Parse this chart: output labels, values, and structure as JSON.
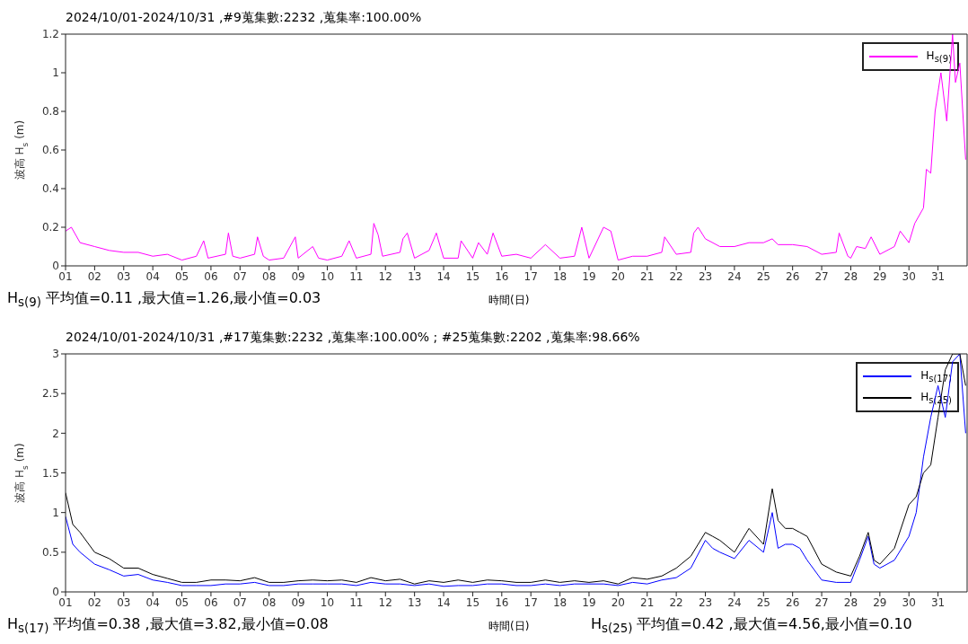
{
  "chart_data": [
    {
      "type": "line",
      "title": "2024/10/01-2024/10/31 ,#9蒐集數:2232 ,蒐集率:100.00%",
      "xlabel": "時間(日)",
      "ylabel": "波高 H$_{s}$ (m)",
      "annotations": [
        "H$_{s(9)}$ 平均值=0.11 ,最大值=1.26,最小值=0.03"
      ],
      "xlim": [
        1,
        32
      ],
      "ylim": [
        0,
        1.2
      ],
      "yticks": [
        0,
        0.2,
        0.4,
        0.6,
        0.8,
        1,
        1.2
      ],
      "xticks": [
        {
          "value": 1,
          "label": "01"
        },
        {
          "value": 2,
          "label": "02"
        },
        {
          "value": 3,
          "label": "03"
        },
        {
          "value": 4,
          "label": "04"
        },
        {
          "value": 5,
          "label": "05"
        },
        {
          "value": 6,
          "label": "06"
        },
        {
          "value": 7,
          "label": "07"
        },
        {
          "value": 8,
          "label": "08"
        },
        {
          "value": 9,
          "label": "09"
        },
        {
          "value": 10,
          "label": "10"
        },
        {
          "value": 11,
          "label": "11"
        },
        {
          "value": 12,
          "label": "12"
        },
        {
          "value": 13,
          "label": "13"
        },
        {
          "value": 14,
          "label": "14"
        },
        {
          "value": 15,
          "label": "15"
        },
        {
          "value": 16,
          "label": "16"
        },
        {
          "value": 17,
          "label": "17"
        },
        {
          "value": 18,
          "label": "18"
        },
        {
          "value": 19,
          "label": "19"
        },
        {
          "value": 20,
          "label": "20"
        },
        {
          "value": 21,
          "label": "21"
        },
        {
          "value": 22,
          "label": "22"
        },
        {
          "value": 23,
          "label": "23"
        },
        {
          "value": 24,
          "label": "24"
        },
        {
          "value": 25,
          "label": "25"
        },
        {
          "value": 26,
          "label": "26"
        },
        {
          "value": 27,
          "label": "27"
        },
        {
          "value": 28,
          "label": "28"
        },
        {
          "value": 29,
          "label": "29"
        },
        {
          "value": 30,
          "label": "30"
        },
        {
          "value": 31,
          "label": "31"
        }
      ],
      "legend": "top right",
      "series": [
        {
          "name": "H$_{s(9)}$",
          "color": "#ff00ff",
          "x": [
            1,
            1.2,
            1.5,
            2,
            2.5,
            3,
            3.5,
            4,
            4.5,
            5,
            5.5,
            5.75,
            5.9,
            6.5,
            6.6,
            6.75,
            7,
            7.5,
            7.6,
            7.8,
            8,
            8.5,
            8.9,
            9,
            9.5,
            9.7,
            10,
            10.5,
            10.75,
            11,
            11.5,
            11.6,
            11.75,
            11.9,
            12.5,
            12.6,
            12.75,
            13,
            13.5,
            13.75,
            14,
            14.5,
            14.6,
            15,
            15.2,
            15.5,
            15.7,
            16,
            16.5,
            17,
            17.5,
            18,
            18.5,
            18.75,
            19,
            19.5,
            19.75,
            20,
            20.5,
            21,
            21.5,
            21.6,
            22,
            22.5,
            22.6,
            22.75,
            23,
            23.5,
            24,
            24.5,
            25,
            25.3,
            25.5,
            26,
            26.5,
            27,
            27.5,
            27.6,
            27.9,
            28,
            28.2,
            28.5,
            28.7,
            29,
            29.5,
            29.7,
            30,
            30.2,
            30.5,
            30.6,
            30.75,
            30.9,
            31,
            31.1,
            31.3,
            31.5,
            31.6,
            31.75,
            31.95
          ],
          "values": [
            0.18,
            0.2,
            0.12,
            0.1,
            0.08,
            0.07,
            0.07,
            0.05,
            0.06,
            0.03,
            0.05,
            0.13,
            0.04,
            0.06,
            0.17,
            0.05,
            0.04,
            0.06,
            0.15,
            0.05,
            0.03,
            0.04,
            0.15,
            0.04,
            0.1,
            0.04,
            0.03,
            0.05,
            0.13,
            0.04,
            0.06,
            0.22,
            0.16,
            0.05,
            0.07,
            0.14,
            0.17,
            0.04,
            0.08,
            0.17,
            0.04,
            0.04,
            0.13,
            0.04,
            0.12,
            0.06,
            0.17,
            0.05,
            0.06,
            0.04,
            0.11,
            0.04,
            0.05,
            0.2,
            0.04,
            0.2,
            0.18,
            0.03,
            0.05,
            0.05,
            0.07,
            0.15,
            0.06,
            0.07,
            0.17,
            0.2,
            0.14,
            0.1,
            0.1,
            0.12,
            0.12,
            0.14,
            0.11,
            0.11,
            0.1,
            0.06,
            0.07,
            0.17,
            0.05,
            0.04,
            0.1,
            0.09,
            0.15,
            0.06,
            0.1,
            0.18,
            0.12,
            0.22,
            0.3,
            0.5,
            0.48,
            0.8,
            0.9,
            1.0,
            0.75,
            1.2,
            0.95,
            1.05,
            0.55
          ]
        }
      ]
    },
    {
      "type": "line",
      "title": "2024/10/01-2024/10/31 ,#17蒐集數:2232 ,蒐集率:100.00% ; #25蒐集數:2202 ,蒐集率:98.66%",
      "xlabel": "時間(日)",
      "ylabel": "波高 H$_{s}$ (m)",
      "annotations": [
        "H$_{s(17)}$ 平均值=0.38 ,最大值=3.82,最小值=0.08",
        "H$_{s(25)}$ 平均值=0.42 ,最大值=4.56,最小值=0.10"
      ],
      "xlim": [
        1,
        32
      ],
      "ylim": [
        0,
        3
      ],
      "yticks": [
        0,
        0.5,
        1,
        1.5,
        2,
        2.5,
        3
      ],
      "xticks": [
        {
          "value": 1,
          "label": "01"
        },
        {
          "value": 2,
          "label": "02"
        },
        {
          "value": 3,
          "label": "03"
        },
        {
          "value": 4,
          "label": "04"
        },
        {
          "value": 5,
          "label": "05"
        },
        {
          "value": 6,
          "label": "06"
        },
        {
          "value": 7,
          "label": "07"
        },
        {
          "value": 8,
          "label": "08"
        },
        {
          "value": 9,
          "label": "09"
        },
        {
          "value": 10,
          "label": "10"
        },
        {
          "value": 11,
          "label": "11"
        },
        {
          "value": 12,
          "label": "12"
        },
        {
          "value": 13,
          "label": "13"
        },
        {
          "value": 14,
          "label": "14"
        },
        {
          "value": 15,
          "label": "15"
        },
        {
          "value": 16,
          "label": "16"
        },
        {
          "value": 17,
          "label": "17"
        },
        {
          "value": 18,
          "label": "18"
        },
        {
          "value": 19,
          "label": "19"
        },
        {
          "value": 20,
          "label": "20"
        },
        {
          "value": 21,
          "label": "21"
        },
        {
          "value": 22,
          "label": "22"
        },
        {
          "value": 23,
          "label": "23"
        },
        {
          "value": 24,
          "label": "24"
        },
        {
          "value": 25,
          "label": "25"
        },
        {
          "value": 26,
          "label": "26"
        },
        {
          "value": 27,
          "label": "27"
        },
        {
          "value": 28,
          "label": "28"
        },
        {
          "value": 29,
          "label": "29"
        },
        {
          "value": 30,
          "label": "30"
        },
        {
          "value": 31,
          "label": "31"
        }
      ],
      "legend": "top right",
      "x": [
        1,
        1.25,
        1.5,
        2,
        2.5,
        3,
        3.5,
        4,
        4.5,
        5,
        5.5,
        6,
        6.5,
        7,
        7.5,
        8,
        8.5,
        9,
        9.5,
        10,
        10.5,
        11,
        11.5,
        12,
        12.5,
        13,
        13.5,
        14,
        14.5,
        15,
        15.5,
        16,
        16.5,
        17,
        17.5,
        18,
        18.5,
        19,
        19.5,
        20,
        20.5,
        21,
        21.5,
        22,
        22.5,
        23,
        23.25,
        23.5,
        24,
        24.5,
        25,
        25.3,
        25.5,
        25.75,
        26,
        26.25,
        26.5,
        27,
        27.5,
        28,
        28.3,
        28.6,
        28.8,
        29,
        29.5,
        30,
        30.25,
        30.5,
        30.75,
        31,
        31.25,
        31.5,
        31.75,
        31.95
      ],
      "series": [
        {
          "name": "H$_{s(17)}$",
          "color": "#0000ff",
          "values": [
            0.95,
            0.6,
            0.5,
            0.35,
            0.28,
            0.2,
            0.22,
            0.15,
            0.12,
            0.08,
            0.08,
            0.08,
            0.1,
            0.1,
            0.12,
            0.08,
            0.08,
            0.1,
            0.1,
            0.1,
            0.1,
            0.08,
            0.12,
            0.1,
            0.1,
            0.08,
            0.1,
            0.07,
            0.08,
            0.08,
            0.1,
            0.1,
            0.08,
            0.08,
            0.1,
            0.08,
            0.1,
            0.1,
            0.1,
            0.08,
            0.12,
            0.1,
            0.15,
            0.18,
            0.3,
            0.65,
            0.55,
            0.5,
            0.42,
            0.65,
            0.5,
            1.0,
            0.55,
            0.6,
            0.6,
            0.55,
            0.4,
            0.15,
            0.12,
            0.12,
            0.4,
            0.7,
            0.35,
            0.3,
            0.4,
            0.7,
            1.0,
            1.7,
            2.2,
            2.6,
            2.2,
            2.9,
            3.0,
            2.0
          ]
        },
        {
          "name": "H$_{s(25)}$",
          "color": "#000000",
          "values": [
            1.25,
            0.85,
            0.75,
            0.5,
            0.42,
            0.3,
            0.3,
            0.22,
            0.17,
            0.12,
            0.12,
            0.15,
            0.15,
            0.14,
            0.18,
            0.12,
            0.12,
            0.14,
            0.15,
            0.14,
            0.15,
            0.12,
            0.18,
            0.14,
            0.16,
            0.1,
            0.14,
            0.12,
            0.15,
            0.12,
            0.15,
            0.14,
            0.12,
            0.12,
            0.15,
            0.12,
            0.14,
            0.12,
            0.14,
            0.1,
            0.18,
            0.16,
            0.2,
            0.3,
            0.45,
            0.75,
            0.7,
            0.65,
            0.5,
            0.8,
            0.6,
            1.3,
            0.9,
            0.8,
            0.8,
            0.75,
            0.7,
            0.35,
            0.25,
            0.2,
            0.45,
            0.75,
            0.4,
            0.35,
            0.55,
            1.1,
            1.2,
            1.5,
            1.6,
            2.2,
            2.8,
            3.0,
            3.0,
            2.6
          ]
        }
      ]
    }
  ]
}
